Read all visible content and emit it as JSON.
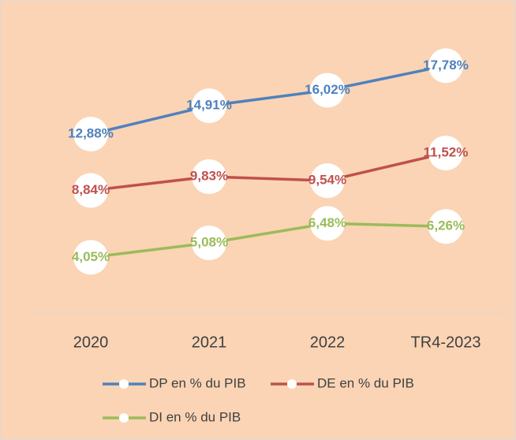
{
  "chart_data": {
    "type": "line",
    "categories": [
      "2020",
      "2021",
      "2022",
      "TR4-2023"
    ],
    "series": [
      {
        "name": "DP en % du PIB",
        "color": "#4f81bd",
        "values": [
          12.88,
          14.91,
          16.02,
          17.78
        ],
        "value_labels": [
          "12,88%",
          "14,91%",
          "16,02%",
          "17,78%"
        ]
      },
      {
        "name": "DE en % du PIB",
        "color": "#c0504d",
        "values": [
          8.84,
          9.83,
          9.54,
          11.52
        ],
        "value_labels": [
          "8,84%",
          "9,83%",
          "9,54%",
          "11,52%"
        ]
      },
      {
        "name": "DI en % du PIB",
        "color": "#9bbb59",
        "values": [
          4.05,
          5.08,
          6.48,
          6.26
        ],
        "value_labels": [
          "4,05%",
          "5,08%",
          "6,48%",
          "6,26%"
        ]
      }
    ],
    "ylim": [
      0,
      20
    ]
  }
}
